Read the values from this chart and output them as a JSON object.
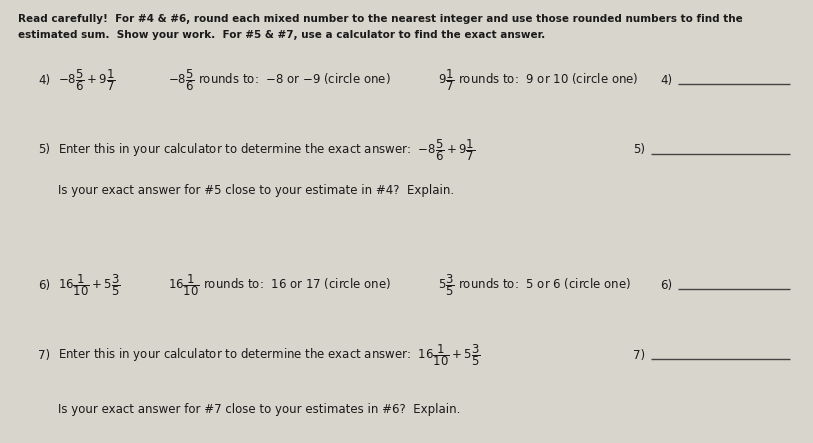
{
  "bg_color": "#d8d5cc",
  "text_color": "#1a1a1a",
  "title_line1": "Read carefully!  For #4 & #6, round each mixed number to the nearest integer and use those rounded numbers to find the",
  "title_line2": "estimated sum.  Show your work.  For #5 & #7, use a calculator to find the exact answer.",
  "figsize": [
    8.13,
    4.43
  ],
  "dpi": 100
}
